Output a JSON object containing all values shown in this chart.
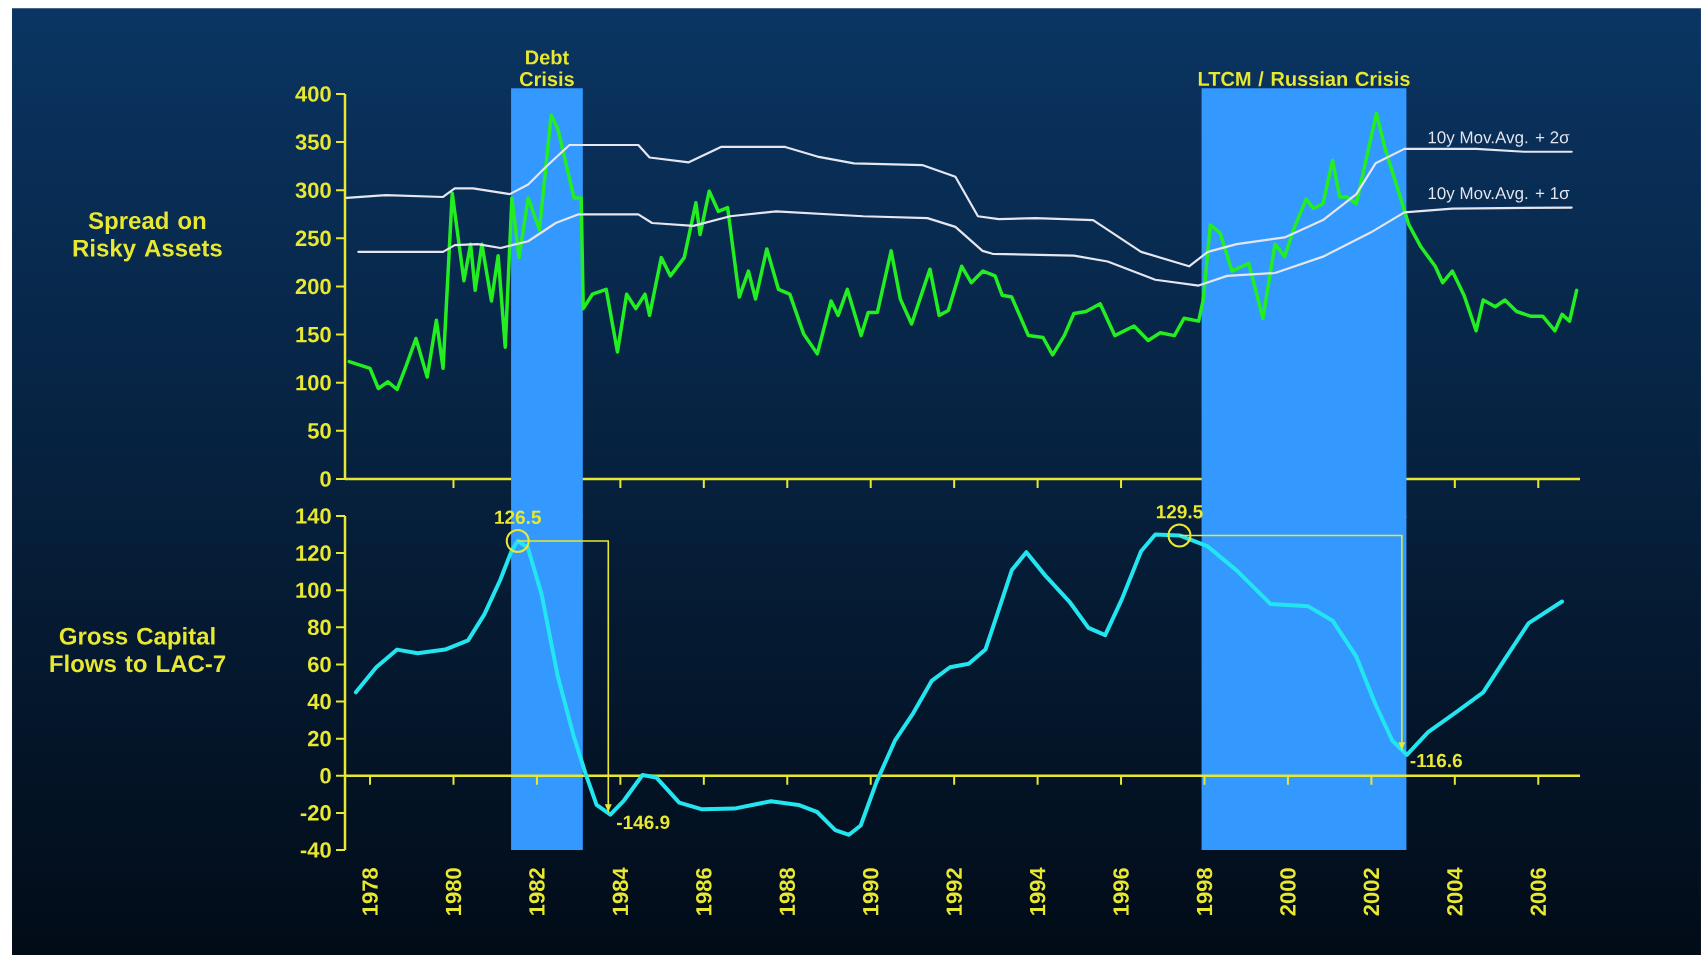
{
  "chart_data": [
    {
      "type": "line",
      "ylabel": "Spread on Risky Assets",
      "xlim": [
        1977.4,
        2007.0
      ],
      "ylim": [
        0,
        400
      ],
      "yticks": [
        0,
        50,
        100,
        150,
        200,
        250,
        300,
        350,
        400
      ],
      "xticks": [
        {
          "value": 1980,
          "label": null
        },
        {
          "value": 1982,
          "label": null
        },
        {
          "value": 1984,
          "label": null
        },
        {
          "value": 1986,
          "label": null
        },
        {
          "value": 1988,
          "label": null
        },
        {
          "value": 1990,
          "label": null
        },
        {
          "value": 1992,
          "label": null
        },
        {
          "value": 1994,
          "label": null
        },
        {
          "value": 1996,
          "label": null
        },
        {
          "value": 1998,
          "label": null
        },
        {
          "value": 2000,
          "label": null
        },
        {
          "value": 2002,
          "label": null
        },
        {
          "value": 2004,
          "label": null
        },
        {
          "value": 2006,
          "label": null
        }
      ],
      "tick_labels": "y",
      "bands": [
        {
          "axis": "x",
          "from": 1981.38,
          "to": 1983.1,
          "label": "Debt Crisis",
          "color": "#3399ff"
        },
        {
          "axis": "x",
          "from": 1997.93,
          "to": 2002.84,
          "label": "LTCM / Russian Crisis",
          "color": "#3399ff"
        }
      ],
      "series": [
        {
          "color": "#22ee22",
          "x": [
            1977.5,
            1978.0,
            1978.2,
            1978.43,
            1978.65,
            1978.87,
            1979.1,
            1979.37,
            1979.59,
            1979.75,
            1979.97,
            1980.25,
            1980.41,
            1980.52,
            1980.68,
            1980.91,
            1981.07,
            1981.24,
            1981.4,
            1981.57,
            1981.79,
            1982.06,
            1982.34,
            1982.5,
            1982.89,
            1983.06,
            1983.11,
            1983.33,
            1983.66,
            1983.93,
            1984.15,
            1984.37,
            1984.59,
            1984.7,
            1984.98,
            1985.2,
            1985.53,
            1985.81,
            1985.91,
            1986.13,
            1986.35,
            1986.57,
            1986.85,
            1987.07,
            1987.24,
            1987.51,
            1987.79,
            1988.06,
            1988.39,
            1988.72,
            1989.05,
            1989.22,
            1989.44,
            1989.77,
            1989.94,
            1990.16,
            1990.49,
            1990.71,
            1990.98,
            1991.42,
            1991.64,
            1991.86,
            1992.18,
            1992.41,
            1992.69,
            1992.98,
            1993.15,
            1993.38,
            1993.78,
            1994.13,
            1994.36,
            1994.64,
            1994.87,
            1995.16,
            1995.5,
            1995.85,
            1996.31,
            1996.65,
            1996.94,
            1997.28,
            1997.51,
            1997.86,
            1997.97,
            1998.14,
            1998.37,
            1998.66,
            1999.06,
            1999.4,
            1999.69,
            1999.92,
            2000.15,
            2000.44,
            2000.61,
            2000.84,
            2001.07,
            2001.24,
            2001.41,
            2001.64,
            2001.87,
            2002.12,
            2002.33,
            2002.62,
            2002.9,
            2003.19,
            2003.53,
            2003.71,
            2003.94,
            2004.22,
            2004.51,
            2004.68,
            2004.97,
            2005.2,
            2005.48,
            2005.83,
            2006.11,
            2006.4,
            2006.57,
            2006.75,
            2006.92
          ],
          "values": [
            122,
            115,
            94,
            101,
            93,
            118,
            146,
            106,
            165,
            115,
            297,
            206,
            244,
            196,
            244,
            185,
            232,
            137,
            292,
            230,
            292,
            259,
            378,
            364,
            292,
            292,
            177,
            192,
            197,
            132,
            192,
            177,
            192,
            170,
            230,
            211,
            230,
            287,
            254,
            299,
            278,
            282,
            189,
            216,
            187,
            239,
            197,
            192,
            151,
            130,
            185,
            170,
            197,
            149,
            173,
            173,
            237,
            187,
            161,
            218,
            170,
            175,
            221,
            204,
            216,
            211,
            191,
            189,
            149,
            147,
            129,
            149,
            172,
            174,
            182,
            149,
            159,
            144,
            152,
            149,
            167,
            164,
            186,
            264,
            256,
            216,
            224,
            167,
            244,
            231,
            261,
            291,
            281,
            286,
            331,
            293,
            293,
            286,
            331,
            380,
            343,
            303,
            264,
            241,
            221,
            204,
            216,
            191,
            154,
            186,
            179,
            186,
            174,
            169,
            169,
            154,
            171,
            164,
            196
          ]
        },
        {
          "name": "10y Mov.Avg. + 2σ",
          "color": "#e6e6f0",
          "x": [
            1977.44,
            1978.38,
            1979.75,
            1980.03,
            1980.47,
            1981.35,
            1981.79,
            1982.23,
            1982.78,
            1984.43,
            1984.7,
            1985.64,
            1986.41,
            1987.95,
            1988.72,
            1989.6,
            1991.25,
            1992.03,
            1992.57,
            1993.07,
            1993.95,
            1995.33,
            1996.48,
            1997.63,
            1998.08,
            1998.77,
            1999.92,
            2000.84,
            2001.64,
            2002.1,
            2002.79,
            2004.51,
            2005.66,
            2006.8
          ],
          "values": [
            292,
            295,
            293,
            302,
            302,
            296,
            306,
            325,
            347,
            347,
            334,
            329,
            345,
            345,
            335,
            328,
            326,
            314,
            273,
            270,
            271,
            269,
            236,
            221,
            236,
            244,
            251,
            269,
            296,
            328,
            343,
            343,
            340,
            340
          ]
        },
        {
          "name": "10y Mov.Avg. + 1σ",
          "color": "#e6e6f0",
          "x": [
            1977.72,
            1979.75,
            1980.03,
            1980.58,
            1981.13,
            1981.79,
            1982.45,
            1983.0,
            1984.43,
            1984.76,
            1985.75,
            1986.63,
            1987.73,
            1989.82,
            1991.36,
            1992.03,
            1992.68,
            1992.92,
            1994.87,
            1995.68,
            1996.82,
            1997.86,
            1998.54,
            1999.69,
            2000.84,
            2001.98,
            2002.79,
            2003.94,
            2006.8
          ],
          "values": [
            236,
            236,
            243,
            244,
            240,
            247,
            266,
            275,
            275,
            266,
            263,
            273,
            278,
            273,
            271,
            262,
            237,
            234,
            232,
            226,
            207,
            201,
            211,
            214,
            231,
            256,
            277,
            281,
            282
          ]
        }
      ]
    },
    {
      "type": "line",
      "ylabel": "Gross Capital Flows to LAC-7",
      "xlim": [
        1977.4,
        2007.0
      ],
      "ylim": [
        -40,
        140
      ],
      "yticks": [
        -40,
        -20,
        0,
        20,
        40,
        60,
        80,
        100,
        120,
        140
      ],
      "xticks": [
        1978,
        1980,
        1982,
        1984,
        1986,
        1988,
        1990,
        1992,
        1994,
        1996,
        1998,
        2000,
        2002,
        2004,
        2006
      ],
      "bands": [
        {
          "axis": "x",
          "from": 1981.38,
          "to": 1983.1,
          "color": "#3399ff"
        },
        {
          "axis": "x",
          "from": 1997.93,
          "to": 2002.84,
          "color": "#3399ff"
        }
      ],
      "ref_lines": [
        {
          "axis": "y",
          "value": 0,
          "color": "#e8e830"
        }
      ],
      "annotations": [
        {
          "text": "126.5",
          "x": 1981.54,
          "y": 126.5
        },
        {
          "text": "-146.9",
          "x": 1983.71,
          "y": -20.4
        },
        {
          "text": "129.5",
          "x": 1997.4,
          "y": 129.5
        },
        {
          "text": "-116.6",
          "x": 2002.73,
          "y": 12.9
        }
      ],
      "series": [
        {
          "color": "#22e5f0",
          "x": [
            1977.66,
            1978.15,
            1978.65,
            1979.14,
            1979.8,
            1980.35,
            1980.74,
            1981.12,
            1981.4,
            1981.54,
            1981.78,
            1982.11,
            1982.5,
            1982.88,
            1983.16,
            1983.43,
            1983.76,
            1984.09,
            1984.53,
            1984.86,
            1985.41,
            1985.96,
            1986.73,
            1987.61,
            1988.27,
            1988.71,
            1989.15,
            1989.48,
            1989.76,
            1990.14,
            1990.58,
            1991.02,
            1991.46,
            1991.9,
            1992.35,
            1992.75,
            1993.04,
            1993.38,
            1993.73,
            1994.18,
            1994.76,
            1995.22,
            1995.62,
            1996.02,
            1996.48,
            1996.82,
            1997.4,
            1998.08,
            1998.77,
            1999.58,
            2000.49,
            2001.07,
            2001.64,
            2002.1,
            2002.5,
            2002.85,
            2003.36,
            2004.05,
            2004.68,
            2005.2,
            2005.77,
            2006.57
          ],
          "values": [
            45,
            58.5,
            68,
            66,
            68,
            73,
            87,
            105.5,
            121.6,
            126.5,
            123,
            98,
            53.6,
            21.4,
            1.6,
            -15.7,
            -21,
            -13.2,
            0.4,
            -0.9,
            -14.5,
            -18.1,
            -17.7,
            -13.7,
            -15.7,
            -19.4,
            -29.3,
            -31.8,
            -26.8,
            -3.3,
            18.9,
            33.8,
            51.1,
            58.5,
            60.4,
            68,
            87.5,
            110.7,
            120.5,
            108,
            93.9,
            79.7,
            75.8,
            95.2,
            121,
            130,
            129.5,
            123.6,
            110.7,
            92.6,
            91.3,
            83.6,
            64.2,
            38.4,
            19,
            11.3,
            23.5,
            34.6,
            44.9,
            62.9,
            82.3,
            93.9
          ]
        }
      ]
    }
  ]
}
